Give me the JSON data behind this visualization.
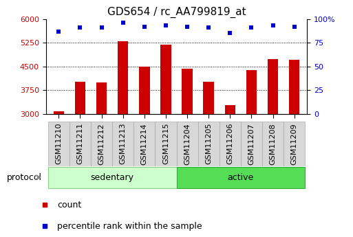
{
  "title": "GDS654 / rc_AA799819_at",
  "categories": [
    "GSM11210",
    "GSM11211",
    "GSM11212",
    "GSM11213",
    "GSM11214",
    "GSM11215",
    "GSM11204",
    "GSM11205",
    "GSM11206",
    "GSM11207",
    "GSM11208",
    "GSM11209"
  ],
  "count_values": [
    3080,
    4020,
    3990,
    5300,
    4490,
    5180,
    4420,
    4010,
    3280,
    4390,
    4720,
    4700
  ],
  "percentile_values": [
    87,
    91,
    91,
    96,
    92,
    93,
    92,
    91,
    85,
    91,
    93,
    92
  ],
  "ylim_left": [
    3000,
    6000
  ],
  "ylim_right": [
    0,
    100
  ],
  "yticks_left": [
    3000,
    3750,
    4500,
    5250,
    6000
  ],
  "yticks_right": [
    0,
    25,
    50,
    75,
    100
  ],
  "bar_color": "#cc0000",
  "dot_color": "#0000cc",
  "bar_width": 0.5,
  "groups": [
    {
      "label": "sedentary",
      "start": 0,
      "end": 6,
      "color": "#ccffcc",
      "edge_color": "#88cc88"
    },
    {
      "label": "active",
      "start": 6,
      "end": 12,
      "color": "#55dd55",
      "edge_color": "#33aa33"
    }
  ],
  "group_label": "protocol",
  "legend_items": [
    {
      "label": "count",
      "color": "#cc0000"
    },
    {
      "label": "percentile rank within the sample",
      "color": "#0000cc"
    }
  ],
  "title_fontsize": 11,
  "tick_fontsize": 8,
  "label_fontsize": 9,
  "xtick_bg": "#d8d8d8",
  "protocol_arrow_color": "#888888"
}
